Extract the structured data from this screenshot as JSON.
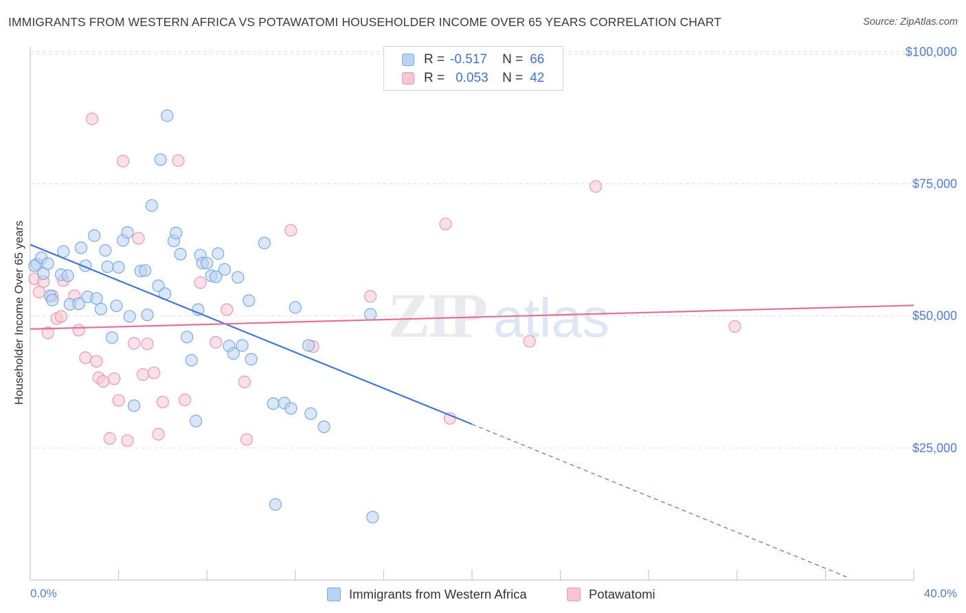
{
  "title": "IMMIGRANTS FROM WESTERN AFRICA VS POTAWATOMI HOUSEHOLDER INCOME OVER 65 YEARS CORRELATION CHART",
  "source": "Source: ZipAtlas.com",
  "watermark": "ZIPatlas",
  "legend": {
    "rows": [
      {
        "r_label": "R =",
        "r_value": "-0.517",
        "n_label": "N =",
        "n_value": "66"
      },
      {
        "r_label": "R =",
        "r_value": "0.053",
        "n_label": "N =",
        "n_value": "42"
      }
    ]
  },
  "bottom_legend": {
    "series1": "Immigrants from Western Africa",
    "series2": "Potawatomi"
  },
  "colors": {
    "series1_fill": "#b9d3f5",
    "series1_stroke": "#7ea7e3",
    "series1_line": "#3f77d3",
    "series2_fill": "#f8c6d3",
    "series2_stroke": "#ec97b1",
    "series2_line": "#e0709a",
    "tick_text": "#4a7fd4",
    "grid": "#dddddd"
  },
  "chart_data": {
    "type": "scatter",
    "xlabel": "",
    "ylabel": "Householder Income Over 65 years",
    "xlim": [
      0,
      40
    ],
    "ylim": [
      0,
      102000
    ],
    "x_tick_labels": [
      "0.0%",
      "40.0%"
    ],
    "y_ticks": [
      25000,
      50000,
      75000,
      100000
    ],
    "y_tick_labels": [
      "$25,000",
      "$50,000",
      "$75,000",
      "$100,000"
    ],
    "grid": "horizontal dashed",
    "legend_position": "top-center",
    "series": [
      {
        "name": "Immigrants from Western Africa",
        "points": [
          [
            0.3,
            59800
          ],
          [
            0.5,
            61000
          ],
          [
            0.6,
            58000
          ],
          [
            0.8,
            59900
          ],
          [
            0.9,
            53800
          ],
          [
            1.0,
            53000
          ],
          [
            1.4,
            57800
          ],
          [
            1.5,
            62200
          ],
          [
            1.7,
            57600
          ],
          [
            1.8,
            52200
          ],
          [
            2.2,
            52300
          ],
          [
            2.3,
            62900
          ],
          [
            2.5,
            59500
          ],
          [
            2.6,
            53600
          ],
          [
            2.9,
            65200
          ],
          [
            3.0,
            53300
          ],
          [
            3.2,
            51300
          ],
          [
            3.4,
            62400
          ],
          [
            3.5,
            59300
          ],
          [
            3.7,
            45900
          ],
          [
            3.9,
            51900
          ],
          [
            4.0,
            59200
          ],
          [
            4.2,
            64300
          ],
          [
            4.4,
            65800
          ],
          [
            4.5,
            49900
          ],
          [
            4.7,
            33000
          ],
          [
            5.0,
            58500
          ],
          [
            5.2,
            58600
          ],
          [
            5.3,
            50200
          ],
          [
            5.5,
            70900
          ],
          [
            5.8,
            55700
          ],
          [
            5.9,
            79600
          ],
          [
            6.1,
            54200
          ],
          [
            6.2,
            87900
          ],
          [
            6.5,
            64200
          ],
          [
            6.6,
            65700
          ],
          [
            6.8,
            61700
          ],
          [
            7.1,
            46000
          ],
          [
            7.3,
            41600
          ],
          [
            7.5,
            30100
          ],
          [
            7.6,
            51200
          ],
          [
            7.7,
            61500
          ],
          [
            7.8,
            60000
          ],
          [
            8.0,
            60000
          ],
          [
            8.2,
            57600
          ],
          [
            8.4,
            57400
          ],
          [
            8.5,
            61800
          ],
          [
            8.8,
            58800
          ],
          [
            9.0,
            44300
          ],
          [
            9.2,
            42900
          ],
          [
            9.4,
            57300
          ],
          [
            9.6,
            44400
          ],
          [
            9.9,
            52900
          ],
          [
            10.0,
            41800
          ],
          [
            10.6,
            63800
          ],
          [
            11.0,
            33400
          ],
          [
            11.1,
            14300
          ],
          [
            11.5,
            33500
          ],
          [
            11.8,
            32500
          ],
          [
            12.0,
            51600
          ],
          [
            12.6,
            44400
          ],
          [
            12.7,
            31500
          ],
          [
            13.3,
            29000
          ],
          [
            15.4,
            50300
          ],
          [
            15.5,
            11900
          ],
          [
            0.2,
            59500
          ]
        ]
      },
      {
        "name": "Potawatomi",
        "points": [
          [
            0.2,
            57000
          ],
          [
            0.4,
            54500
          ],
          [
            0.6,
            56500
          ],
          [
            0.8,
            46800
          ],
          [
            1.0,
            53800
          ],
          [
            1.2,
            49500
          ],
          [
            1.4,
            49900
          ],
          [
            1.5,
            56700
          ],
          [
            2.0,
            53800
          ],
          [
            2.2,
            47300
          ],
          [
            2.5,
            42100
          ],
          [
            2.8,
            87300
          ],
          [
            3.0,
            41400
          ],
          [
            3.1,
            38300
          ],
          [
            3.3,
            37600
          ],
          [
            3.6,
            26800
          ],
          [
            3.8,
            38100
          ],
          [
            4.0,
            34000
          ],
          [
            4.2,
            79300
          ],
          [
            4.4,
            26400
          ],
          [
            4.7,
            44800
          ],
          [
            4.9,
            64700
          ],
          [
            5.1,
            38900
          ],
          [
            5.3,
            44700
          ],
          [
            5.6,
            39200
          ],
          [
            5.8,
            27600
          ],
          [
            6.0,
            33700
          ],
          [
            6.7,
            79400
          ],
          [
            7.0,
            34100
          ],
          [
            7.7,
            56300
          ],
          [
            8.4,
            45000
          ],
          [
            8.9,
            51200
          ],
          [
            9.7,
            37500
          ],
          [
            9.8,
            26600
          ],
          [
            11.8,
            66200
          ],
          [
            12.8,
            44200
          ],
          [
            15.4,
            53700
          ],
          [
            19.0,
            30600
          ],
          [
            18.8,
            67400
          ],
          [
            22.6,
            45200
          ],
          [
            25.6,
            74500
          ],
          [
            31.9,
            48000
          ]
        ]
      }
    ],
    "trend_lines": [
      {
        "series": "Immigrants from Western Africa",
        "x_start": 0,
        "y_start": 63500,
        "x_end": 20,
        "y_end": 29500,
        "dashed_to_x": 37,
        "dashed_to_y": 500
      },
      {
        "series": "Potawatomi",
        "x_start": 0,
        "y_start": 47500,
        "x_end": 40,
        "y_end": 52000
      }
    ]
  }
}
